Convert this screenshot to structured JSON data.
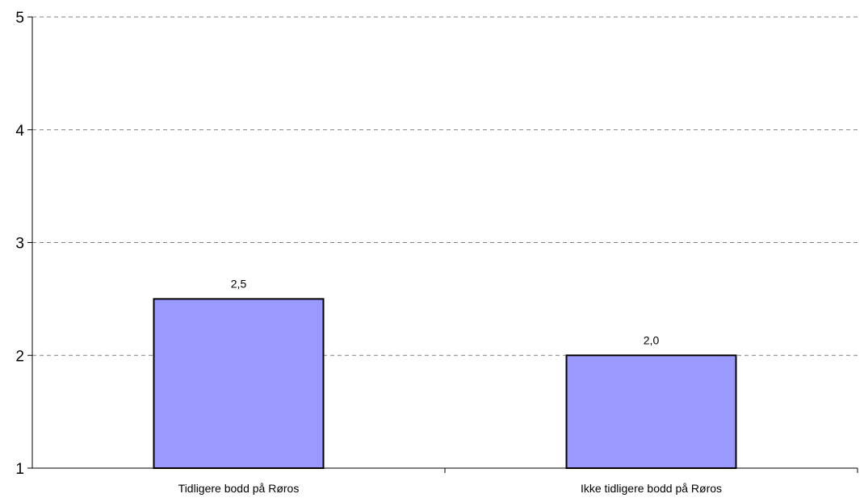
{
  "chart_data": {
    "type": "bar",
    "categories": [
      "Tidligere bodd på Røros",
      "Ikke tidligere bodd på Røros"
    ],
    "values": [
      2.5,
      2.0
    ],
    "value_labels": [
      "2,5",
      "2,0"
    ],
    "ylim": [
      1,
      5
    ],
    "yticks": [
      1,
      2,
      3,
      4,
      5
    ],
    "grid": true,
    "colors": {
      "bar": "#9999ff",
      "bar_border": "#000000",
      "grid": "#808080"
    }
  }
}
